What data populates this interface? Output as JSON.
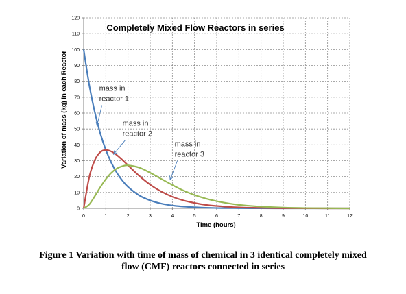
{
  "chart_data": {
    "type": "line",
    "title": "Completely Mixed Flow Reactors in series",
    "xlabel": "Time (hours)",
    "ylabel": "Variation of mass (kg) in each Reactor",
    "xlim": [
      0,
      12
    ],
    "ylim": [
      0,
      120
    ],
    "x_ticks": [
      "0",
      "1",
      "2",
      "3",
      "4",
      "5",
      "6",
      "7",
      "8",
      "9",
      "10",
      "11",
      "12"
    ],
    "y_ticks": [
      "0",
      "10",
      "20",
      "30",
      "40",
      "50",
      "60",
      "70",
      "80",
      "90",
      "100",
      "110",
      "120"
    ],
    "grid": true,
    "x": [
      0,
      0.25,
      0.5,
      0.75,
      1,
      1.25,
      1.5,
      1.75,
      2,
      2.5,
      3,
      3.5,
      4,
      4.5,
      5,
      5.5,
      6,
      6.5,
      7,
      7.5,
      8,
      9,
      10,
      11,
      12
    ],
    "series": [
      {
        "name": "reactor 1",
        "color": "#4a7ebb",
        "values": [
          100,
          77.9,
          60.7,
          47.2,
          36.8,
          28.7,
          22.3,
          17.4,
          13.5,
          8.2,
          5.0,
          3.0,
          1.8,
          1.1,
          0.7,
          0.4,
          0.2,
          0.15,
          0.1,
          0.05,
          0.03,
          0.01,
          0,
          0,
          0
        ]
      },
      {
        "name": "reactor 2",
        "color": "#be4b48",
        "values": [
          0,
          19.5,
          30.3,
          35.4,
          36.8,
          35.8,
          33.5,
          30.4,
          27.1,
          20.5,
          14.9,
          10.6,
          7.3,
          5.0,
          3.4,
          2.2,
          1.5,
          1.0,
          0.6,
          0.4,
          0.3,
          0.1,
          0.05,
          0,
          0
        ]
      },
      {
        "name": "reactor 3",
        "color": "#98b954",
        "values": [
          0,
          2.4,
          7.6,
          13.3,
          18.4,
          22.4,
          25.1,
          26.6,
          27.1,
          25.7,
          22.4,
          18.5,
          14.7,
          11.2,
          8.4,
          6.2,
          4.5,
          3.2,
          2.2,
          1.6,
          1.1,
          0.5,
          0.2,
          0.1,
          0
        ]
      }
    ],
    "annotations": [
      {
        "lines": [
          "mass in",
          "reactor 1"
        ],
        "x": 0.7,
        "y": 74,
        "arrow_x": 0.6,
        "arrow_y": 52
      },
      {
        "lines": [
          "mass in",
          "reactor 2"
        ],
        "x": 1.75,
        "y": 52,
        "arrow_x": 1.35,
        "arrow_y": 34
      },
      {
        "lines": [
          "mass in",
          "reactor 3"
        ],
        "x": 4.1,
        "y": 39,
        "arrow_x": 3.9,
        "arrow_y": 18
      }
    ]
  },
  "caption": {
    "line1": "Figure 1 Variation with time of mass of chemical in 3 identical completely mixed",
    "line2": "flow (CMF) reactors connected in series"
  }
}
